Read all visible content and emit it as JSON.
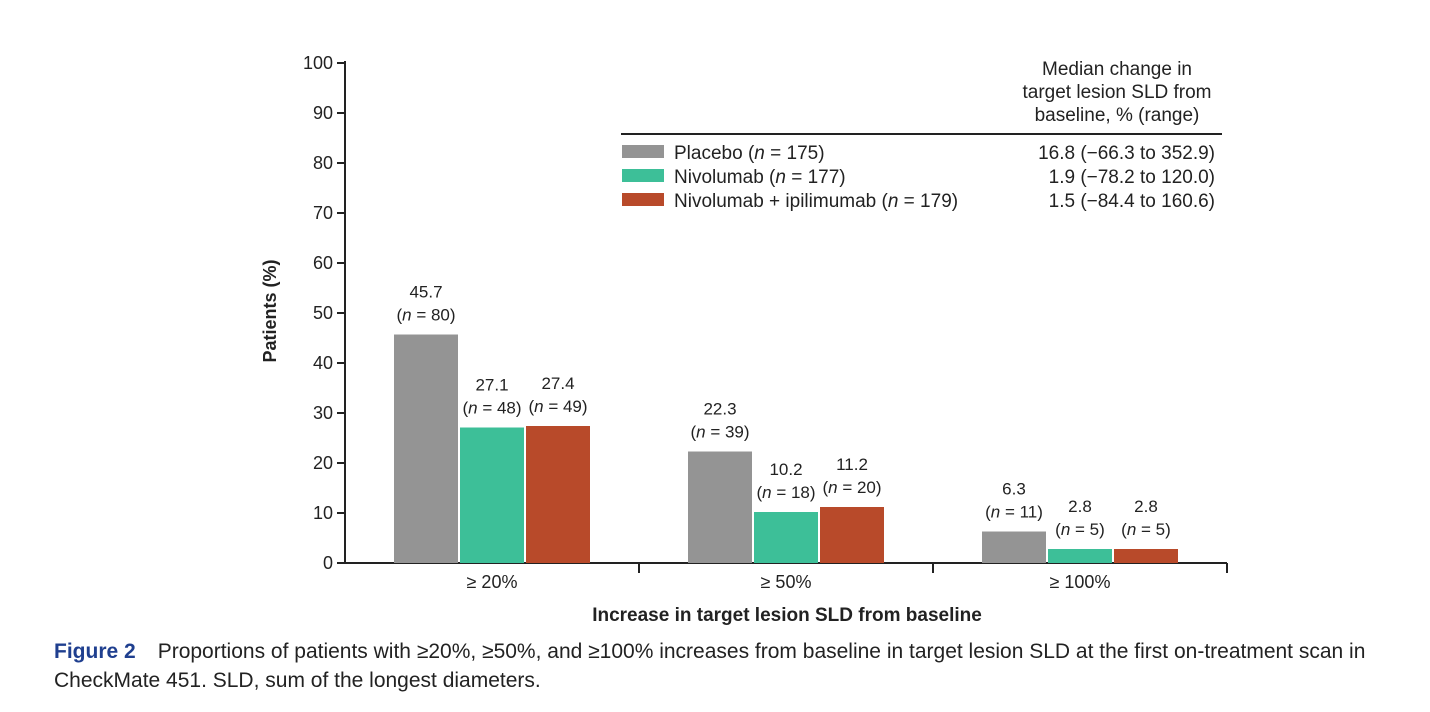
{
  "chart_data": {
    "type": "bar",
    "ylabel": "Patients (%)",
    "xlabel": "Increase in target lesion SLD from baseline",
    "ylim": [
      0,
      100
    ],
    "yticks": [
      0,
      10,
      20,
      30,
      40,
      50,
      60,
      70,
      80,
      90,
      100
    ],
    "categories": [
      "≥ 20%",
      "≥ 50%",
      "≥ 100%"
    ],
    "series": [
      {
        "name": "Placebo",
        "legend_n": "175",
        "color": "#949494",
        "median_change": "16.8 (−66.3 to 352.9)",
        "values": [
          45.7,
          22.3,
          6.3
        ],
        "value_labels": [
          "45.7",
          "22.3",
          "6.3"
        ],
        "n": [
          "80",
          "39",
          "11"
        ]
      },
      {
        "name": "Nivolumab",
        "legend_n": "177",
        "color": "#3dbf98",
        "median_change": "1.9 (−78.2 to 120.0)",
        "values": [
          27.1,
          10.2,
          2.8
        ],
        "value_labels": [
          "27.1",
          "10.2",
          "2.8"
        ],
        "n": [
          "48",
          "18",
          "5"
        ]
      },
      {
        "name": "Nivolumab + ipilimumab",
        "legend_n": "179",
        "color": "#b84a2a",
        "median_change": "1.5 (−84.4 to 160.6)",
        "values": [
          27.4,
          11.2,
          2.8
        ],
        "value_labels": [
          "27.4",
          "11.2",
          "2.8"
        ],
        "n": [
          "49",
          "20",
          "5"
        ]
      }
    ],
    "table_header": [
      "Median change in",
      "target lesion SLD from",
      "baseline, % (range)"
    ]
  },
  "caption": {
    "label": "Figure 2",
    "text": "Proportions of patients with ≥20%, ≥50%, and ≥100% increases from baseline in target lesion SLD at the first on-treatment scan in CheckMate 451. SLD, sum of the longest diameters."
  }
}
